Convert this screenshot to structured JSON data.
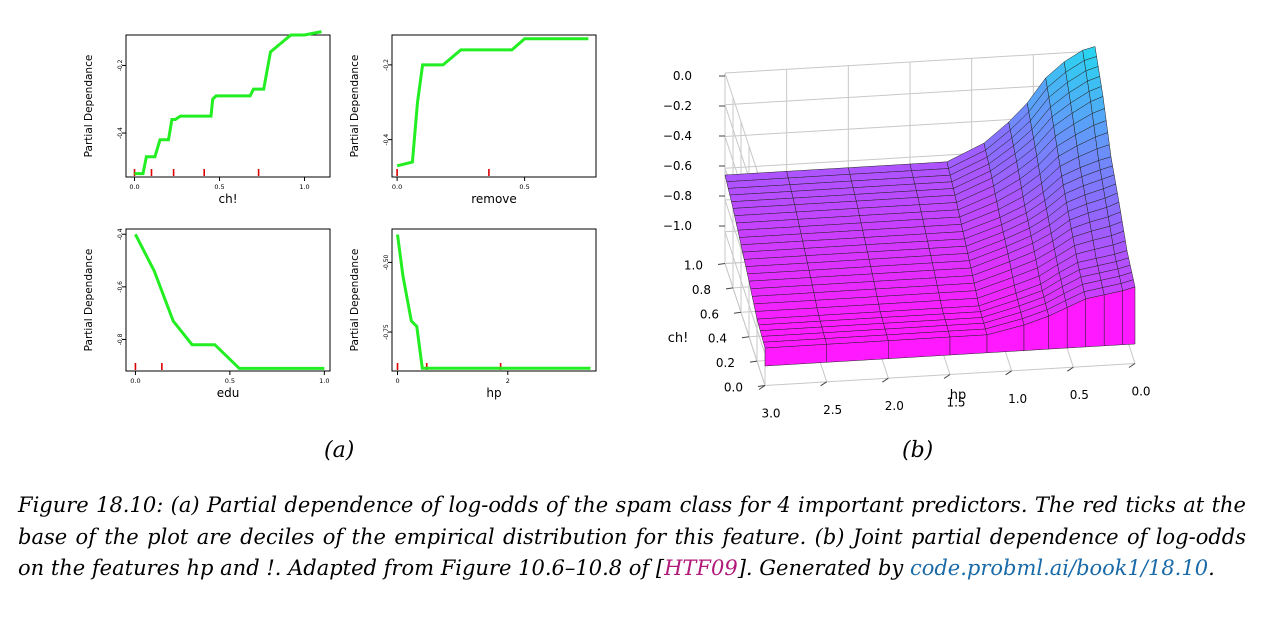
{
  "panel_labels": {
    "a": "(a)",
    "b": "(b)"
  },
  "caption": {
    "part1": "Figure 18.10: (a) Partial dependence of log-odds of the spam class for 4 important predictors. The red ticks at the base of the plot are deciles of the empirical distribution for this feature. (b) Joint partial dependence of log-odds on the features hp and !. Adapted from Figure 10.6–10.8 of [",
    "citation": "HTF09",
    "part2": "]. Generated by ",
    "link": "code.probml.ai/book1/18.10",
    "part3": "."
  },
  "colors": {
    "line": "#22ee22",
    "ticks": "#dd0000",
    "surface_top": "#27d8f0",
    "surface_mid": "#8b6cff",
    "surface_low": "#ff19ff"
  },
  "chart_data": [
    {
      "type": "line",
      "ylabel": "Partial Dependance",
      "xlabel": "ch!",
      "xlim": [
        -0.05,
        1.15
      ],
      "ylim": [
        -0.53,
        -0.11
      ],
      "xticks": [
        "0.0",
        "0.5",
        "1.0"
      ],
      "xtick_values": [
        0,
        0.5,
        1.0
      ],
      "yticks": [
        "-0.2",
        "-0.4"
      ],
      "ytick_values": [
        -0.2,
        -0.4
      ],
      "x": [
        0.0,
        0.05,
        0.07,
        0.12,
        0.15,
        0.2,
        0.22,
        0.24,
        0.27,
        0.35,
        0.45,
        0.46,
        0.48,
        0.68,
        0.7,
        0.76,
        0.8,
        0.92,
        1.0,
        1.1
      ],
      "y": [
        -0.52,
        -0.52,
        -0.47,
        -0.47,
        -0.42,
        -0.42,
        -0.36,
        -0.36,
        -0.35,
        -0.35,
        -0.35,
        -0.3,
        -0.29,
        -0.29,
        -0.27,
        -0.27,
        -0.16,
        -0.11,
        -0.11,
        -0.1
      ],
      "deciles": [
        0.0,
        0.1,
        0.23,
        0.41,
        0.73
      ]
    },
    {
      "type": "line",
      "ylabel": "Partial Dependance",
      "xlabel": "remove",
      "xlim": [
        -0.02,
        0.78
      ],
      "ylim": [
        -0.5,
        -0.12
      ],
      "xticks": [
        "0.0",
        "0.5"
      ],
      "xtick_values": [
        0,
        0.5
      ],
      "yticks": [
        "-0.2",
        "-0.4"
      ],
      "ytick_values": [
        -0.2,
        -0.4
      ],
      "x": [
        0.0,
        0.06,
        0.08,
        0.1,
        0.18,
        0.25,
        0.45,
        0.5,
        0.7,
        0.75
      ],
      "y": [
        -0.47,
        -0.46,
        -0.3,
        -0.2,
        -0.2,
        -0.16,
        -0.16,
        -0.13,
        -0.13,
        -0.13
      ],
      "deciles": [
        0.0,
        0.36
      ]
    },
    {
      "type": "line",
      "ylabel": "Partial Dependance",
      "xlabel": "edu",
      "xlim": [
        -0.05,
        1.03
      ],
      "ylim": [
        -0.92,
        -0.38
      ],
      "xticks": [
        "0.0",
        "0.5",
        "1.0"
      ],
      "xtick_values": [
        0,
        0.5,
        1.0
      ],
      "yticks": [
        "-0.4",
        "-0.6",
        "-0.8"
      ],
      "ytick_values": [
        -0.4,
        -0.6,
        -0.8
      ],
      "x": [
        0.0,
        0.1,
        0.2,
        0.3,
        0.42,
        0.55,
        0.7,
        1.0
      ],
      "y": [
        -0.4,
        -0.54,
        -0.73,
        -0.82,
        -0.82,
        -0.91,
        -0.91,
        -0.91
      ],
      "deciles": [
        0.0,
        0.14
      ]
    },
    {
      "type": "line",
      "ylabel": "Partial Dependance",
      "xlabel": "hp",
      "xlim": [
        -0.1,
        3.6
      ],
      "ylim": [
        -0.89,
        -0.38
      ],
      "xticks": [
        "0",
        "2"
      ],
      "xtick_values": [
        0,
        2
      ],
      "yticks": [
        "-0.50",
        "-0.75"
      ],
      "ytick_values": [
        -0.5,
        -0.75
      ],
      "x": [
        0.0,
        0.1,
        0.25,
        0.35,
        0.45,
        0.55,
        1.0,
        2.0,
        3.5
      ],
      "y": [
        -0.4,
        -0.55,
        -0.71,
        -0.73,
        -0.88,
        -0.88,
        -0.88,
        -0.88,
        -0.88
      ],
      "deciles": [
        0.0,
        0.53,
        1.87
      ]
    },
    {
      "type": "surface",
      "xlabel": "hp",
      "ylabel": "ch!",
      "zticks": [
        "0.0",
        "−0.2",
        "−0.4",
        "−0.6",
        "−0.8",
        "−1.0"
      ],
      "ztick_values": [
        0.0,
        -0.2,
        -0.4,
        -0.6,
        -0.8,
        -1.0
      ],
      "hp_ticks": [
        "3.0",
        "2.5",
        "2.0",
        "1.5",
        "1.0",
        "0.5",
        "0.0"
      ],
      "hp_tick_values": [
        3.0,
        2.5,
        2.0,
        1.5,
        1.0,
        0.5,
        0.0
      ],
      "ch_ticks": [
        "1.0",
        "0.8",
        "0.6",
        "0.4",
        "0.2",
        "0.0"
      ],
      "ch_tick_values": [
        1.0,
        0.8,
        0.6,
        0.4,
        0.2,
        0.0
      ],
      "hp_grid": [
        3.0,
        2.5,
        2.0,
        1.5,
        1.2,
        0.9,
        0.7,
        0.55,
        0.4,
        0.25,
        0.1,
        0.0
      ],
      "ch_grid": [
        0.0,
        0.2,
        0.4,
        0.6,
        0.8,
        1.0
      ],
      "z": [
        [
          -1.0,
          -1.0,
          -1.0,
          -1.0,
          -1.0,
          -0.95,
          -0.9,
          -0.85,
          -0.8,
          -0.78,
          -0.76,
          -0.74
        ],
        [
          -0.97,
          -0.97,
          -0.97,
          -0.97,
          -0.97,
          -0.9,
          -0.85,
          -0.78,
          -0.72,
          -0.7,
          -0.68,
          -0.66
        ],
        [
          -0.88,
          -0.88,
          -0.88,
          -0.88,
          -0.88,
          -0.8,
          -0.74,
          -0.68,
          -0.6,
          -0.56,
          -0.53,
          -0.5
        ],
        [
          -0.8,
          -0.8,
          -0.8,
          -0.8,
          -0.8,
          -0.72,
          -0.65,
          -0.57,
          -0.47,
          -0.42,
          -0.38,
          -0.36
        ],
        [
          -0.72,
          -0.72,
          -0.72,
          -0.72,
          -0.72,
          -0.62,
          -0.52,
          -0.43,
          -0.3,
          -0.22,
          -0.15,
          -0.12
        ],
        [
          -0.66,
          -0.66,
          -0.66,
          -0.66,
          -0.66,
          -0.55,
          -0.42,
          -0.3,
          -0.14,
          -0.04,
          0.03,
          0.05
        ]
      ]
    }
  ]
}
